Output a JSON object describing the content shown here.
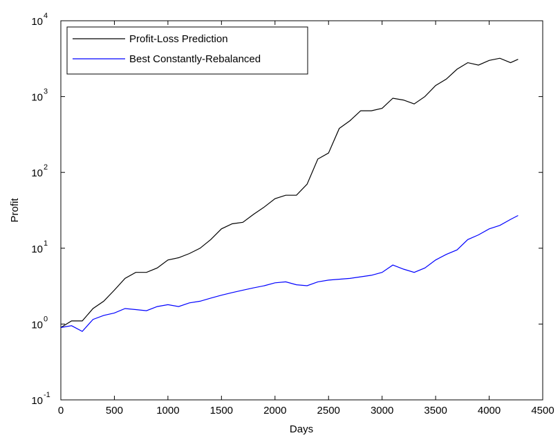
{
  "chart_data": {
    "type": "line",
    "xlabel": "Days",
    "ylabel": "Profit",
    "yscale": "log",
    "legend": "upper left",
    "x": [
      0,
      100,
      200,
      300,
      400,
      500,
      600,
      700,
      800,
      900,
      1000,
      1100,
      1200,
      1300,
      1400,
      1500,
      1600,
      1700,
      1800,
      1900,
      2000,
      2100,
      2200,
      2300,
      2400,
      2500,
      2600,
      2700,
      2800,
      2900,
      3000,
      3100,
      3200,
      3300,
      3400,
      3500,
      3600,
      3700,
      3800,
      3900,
      4000,
      4100,
      4200,
      4270
    ],
    "series": [
      {
        "name": "Profit-Loss Prediction",
        "color": "#000000",
        "values": [
          0.9,
          1.1,
          1.1,
          1.6,
          2.0,
          2.8,
          4.0,
          4.8,
          4.8,
          5.5,
          7,
          7.5,
          8.5,
          10,
          13,
          18,
          21,
          22,
          28,
          35,
          45,
          50,
          50,
          70,
          150,
          180,
          380,
          480,
          650,
          650,
          700,
          950,
          900,
          800,
          1000,
          1400,
          1700,
          2300,
          2800,
          2600,
          3000,
          3200,
          2800,
          3100
        ]
      },
      {
        "name": "Best Constantly-Rebalanced",
        "color": "#0000ff",
        "values": [
          0.9,
          0.95,
          0.8,
          1.15,
          1.3,
          1.4,
          1.6,
          1.55,
          1.5,
          1.7,
          1.8,
          1.7,
          1.9,
          2.0,
          2.2,
          2.4,
          2.6,
          2.8,
          3.0,
          3.2,
          3.5,
          3.6,
          3.3,
          3.2,
          3.6,
          3.8,
          3.9,
          4.0,
          4.2,
          4.4,
          4.8,
          6.0,
          5.3,
          4.8,
          5.5,
          7.0,
          8.3,
          9.5,
          13,
          15,
          18,
          20,
          24,
          27
        ]
      }
    ],
    "xlim": [
      0,
      4500
    ],
    "xticks": [
      0,
      500,
      1000,
      1500,
      2000,
      2500,
      3000,
      3500,
      4000,
      4500
    ],
    "ylim": [
      0.1,
      10000
    ],
    "yticks": [
      {
        "value": 0.1,
        "label": "10",
        "exponent": "-1"
      },
      {
        "value": 1,
        "label": "10",
        "exponent": "0"
      },
      {
        "value": 10,
        "label": "10",
        "exponent": "1"
      },
      {
        "value": 100,
        "label": "10",
        "exponent": "2"
      },
      {
        "value": 1000,
        "label": "10",
        "exponent": "3"
      },
      {
        "value": 10000,
        "label": "10",
        "exponent": "4"
      }
    ]
  }
}
